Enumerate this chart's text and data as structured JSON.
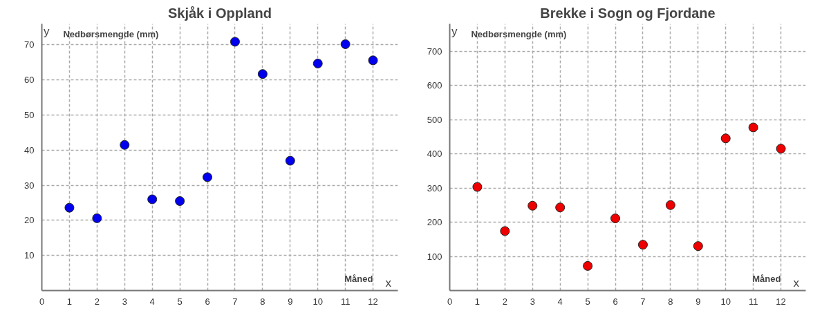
{
  "chart_data": [
    {
      "type": "scatter",
      "title": "Skjåk i Oppland",
      "xlabel": "Måned",
      "ylabel": "Nedbørsmengde (mm)",
      "annotations": [
        "x",
        "y"
      ],
      "x": [
        1,
        2,
        3,
        4,
        5,
        6,
        7,
        8,
        9,
        10,
        11,
        12
      ],
      "series": [
        {
          "color": "#0000ee",
          "values": [
            23.6,
            20.6,
            41.5,
            26.0,
            25.5,
            32.3,
            70.9,
            61.7,
            37.0,
            64.7,
            70.2,
            65.6
          ]
        }
      ],
      "xlim": [
        0,
        12.9
      ],
      "ylim": [
        0,
        76
      ],
      "xticks": [
        0,
        1,
        2,
        3,
        4,
        5,
        6,
        7,
        8,
        9,
        10,
        11,
        12
      ],
      "yticks": [
        10,
        20,
        30,
        40,
        50,
        60,
        70
      ],
      "grid": true,
      "marker": "circle"
    },
    {
      "type": "scatter",
      "title": "Brekke i Sogn og Fjordane",
      "xlabel": "Måned",
      "ylabel": "Nedbørsmengde (mm)",
      "annotations": [
        "x",
        "y"
      ],
      "x": [
        1,
        2,
        3,
        4,
        5,
        6,
        7,
        8,
        9,
        10,
        11,
        12
      ],
      "series": [
        {
          "color": "#ee0000",
          "values": [
            303,
            174,
            248,
            243,
            72,
            211,
            134,
            250,
            130,
            445,
            477,
            415
          ]
        }
      ],
      "xlim": [
        0,
        12.9
      ],
      "ylim": [
        0,
        780
      ],
      "xticks": [
        0,
        1,
        2,
        3,
        4,
        5,
        6,
        7,
        8,
        9,
        10,
        11,
        12
      ],
      "yticks": [
        100,
        200,
        300,
        400,
        500,
        600,
        700
      ],
      "grid": true,
      "marker": "circle"
    }
  ]
}
